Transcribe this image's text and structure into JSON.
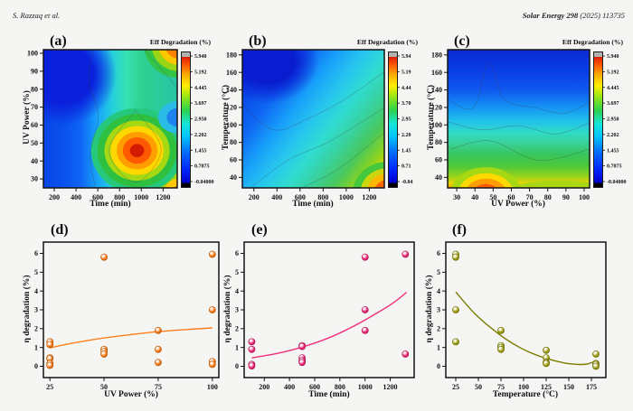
{
  "header": {
    "author": "S. Razzaq et al.",
    "journal_bold": "Solar Energy 298",
    "journal_rest": " (2025) 113735"
  },
  "colorbar_title": "Eff Degradation (%)",
  "chart_data": [
    {
      "id": "a",
      "label": "(a)",
      "type": "heatmap",
      "xlabel": "Time (min)",
      "ylabel": "UV Power (%)",
      "xlim": [
        100,
        1330
      ],
      "ylim": [
        25,
        102
      ],
      "xticks": [
        200,
        400,
        600,
        800,
        1000,
        1200
      ],
      "yticks": [
        30,
        40,
        50,
        60,
        70,
        80,
        90,
        100
      ],
      "colorbar": {
        "title": "Eff Degradation (%)",
        "ticks": [
          "5.940",
          "5.192",
          "4.445",
          "3.697",
          "2.950",
          "2.202",
          "1.455",
          "0.7075",
          "-0.04000"
        ]
      },
      "approx_field": {
        "approx": true,
        "x": [
          100,
          500,
          800,
          1100,
          1330
        ],
        "y_rows_top_to_bottom": [
          100,
          70,
          50,
          30
        ],
        "values": [
          [
            0.4,
            0.1,
            1.5,
            4.0,
            5.5
          ],
          [
            0.8,
            0.5,
            1.8,
            2.5,
            2.0
          ],
          [
            1.0,
            0.9,
            3.0,
            5.8,
            1.5
          ],
          [
            0.8,
            1.2,
            2.5,
            4.0,
            5.9
          ]
        ]
      }
    },
    {
      "id": "b",
      "label": "(b)",
      "type": "heatmap",
      "xlabel": "Time (min)",
      "ylabel": "Temperature (°C)",
      "xlim": [
        100,
        1330
      ],
      "ylim": [
        28,
        186
      ],
      "xticks": [
        200,
        400,
        600,
        800,
        1000,
        1200
      ],
      "yticks": [
        40,
        60,
        80,
        100,
        120,
        140,
        160,
        180
      ],
      "colorbar": {
        "title": "Eff Degradation (%)",
        "ticks": [
          "5.94",
          "5.19",
          "4.44",
          "3.70",
          "2.95",
          "2.20",
          "1.45",
          "0.71",
          "-0.04"
        ]
      },
      "approx_field": {
        "approx": true,
        "x": [
          100,
          500,
          800,
          1100,
          1330
        ],
        "y_rows_top_to_bottom": [
          180,
          130,
          80,
          30
        ],
        "values": [
          [
            0.0,
            0.1,
            0.3,
            0.8,
            1.2
          ],
          [
            0.3,
            0.2,
            0.8,
            1.3,
            1.8
          ],
          [
            0.8,
            1.0,
            1.5,
            2.2,
            3.0
          ],
          [
            1.3,
            1.8,
            2.5,
            4.0,
            5.9
          ]
        ]
      }
    },
    {
      "id": "c",
      "label": "(c)",
      "type": "heatmap",
      "xlabel": "UV Power (%)",
      "ylabel": "Temperature (°C)",
      "xlim": [
        25,
        103
      ],
      "ylim": [
        28,
        186
      ],
      "xticks": [
        30,
        40,
        50,
        60,
        70,
        80,
        90,
        100
      ],
      "yticks": [
        40,
        60,
        80,
        100,
        120,
        140,
        160,
        180
      ],
      "colorbar": {
        "title": "Eff Degradation (%)",
        "ticks": [
          "5.940",
          "5.192",
          "4.445",
          "3.697",
          "2.950",
          "2.202",
          "1.455",
          "0.7075",
          "-0.04000"
        ]
      },
      "approx_field": {
        "approx": true,
        "x": [
          30,
          50,
          75,
          100
        ],
        "y_rows_top_to_bottom": [
          180,
          120,
          80,
          30
        ],
        "values": [
          [
            0.3,
            0.5,
            0.2,
            0.1
          ],
          [
            1.3,
            1.0,
            0.8,
            1.0
          ],
          [
            2.2,
            1.8,
            1.5,
            1.8
          ],
          [
            5.9,
            5.5,
            4.0,
            3.0
          ]
        ]
      }
    },
    {
      "id": "d",
      "label": "(d)",
      "type": "scatter",
      "xlabel": "UV Power (%)",
      "ylabel": "η degradation (%)",
      "xlim": [
        22,
        103
      ],
      "ylim": [
        -0.6,
        6.6
      ],
      "xticks": [
        25,
        50,
        75,
        100
      ],
      "yticks": [
        0,
        1,
        2,
        3,
        4,
        5,
        6
      ],
      "marker": {
        "main": "#ff7f1e",
        "dark": "#b35300",
        "light": "#ffd9ad"
      },
      "line_color": "#ff7f1e",
      "points": [
        [
          25,
          1.3
        ],
        [
          25,
          1.15
        ],
        [
          25,
          0.45
        ],
        [
          25,
          0.4
        ],
        [
          25,
          0.15
        ],
        [
          25,
          0.05
        ],
        [
          50,
          5.8
        ],
        [
          50,
          0.9
        ],
        [
          50,
          0.78
        ],
        [
          50,
          0.65
        ],
        [
          75,
          1.9
        ],
        [
          75,
          0.9
        ],
        [
          75,
          0.2
        ],
        [
          100,
          5.95
        ],
        [
          100,
          3.0
        ],
        [
          100,
          0.25
        ],
        [
          100,
          0.1
        ]
      ],
      "trend": [
        [
          25,
          0.98
        ],
        [
          35,
          1.22
        ],
        [
          45,
          1.42
        ],
        [
          55,
          1.58
        ],
        [
          65,
          1.72
        ],
        [
          75,
          1.84
        ],
        [
          85,
          1.93
        ],
        [
          100,
          2.04
        ]
      ]
    },
    {
      "id": "e",
      "label": "(e)",
      "type": "scatter",
      "xlabel": "Time (min)",
      "ylabel": "η degradation (%)",
      "xlim": [
        40,
        1390
      ],
      "ylim": [
        -0.6,
        6.6
      ],
      "xticks": [
        200,
        400,
        600,
        800,
        1000,
        1200
      ],
      "yticks": [
        0,
        1,
        2,
        3,
        4,
        5,
        6
      ],
      "marker": {
        "main": "#f0307d",
        "dark": "#a8114e",
        "light": "#ffc3dc"
      },
      "line_color": "#f0307d",
      "points": [
        [
          100,
          1.3
        ],
        [
          100,
          0.9
        ],
        [
          100,
          0.1
        ],
        [
          100,
          0.02
        ],
        [
          500,
          1.1
        ],
        [
          500,
          1.05
        ],
        [
          500,
          0.45
        ],
        [
          500,
          0.3
        ],
        [
          500,
          0.2
        ],
        [
          1000,
          5.8
        ],
        [
          1000,
          3.0
        ],
        [
          1000,
          1.9
        ],
        [
          1320,
          5.95
        ],
        [
          1320,
          0.65
        ]
      ],
      "trend": [
        [
          100,
          0.45
        ],
        [
          300,
          0.68
        ],
        [
          500,
          1.02
        ],
        [
          700,
          1.48
        ],
        [
          900,
          2.1
        ],
        [
          1100,
          2.85
        ],
        [
          1230,
          3.4
        ],
        [
          1330,
          3.93
        ]
      ]
    },
    {
      "id": "f",
      "label": "(f)",
      "type": "scatter",
      "xlabel": "Temperature (°C)",
      "ylabel": "η degradation (%)",
      "xlim": [
        14,
        191
      ],
      "ylim": [
        -0.6,
        6.6
      ],
      "xticks": [
        25,
        50,
        75,
        100,
        125,
        150,
        175
      ],
      "yticks": [
        0,
        1,
        2,
        3,
        4,
        5,
        6
      ],
      "marker": {
        "main": "#a3a31c",
        "dark": "#6b6b00",
        "light": "#e6e68c"
      },
      "line_color": "#7c7c00",
      "points": [
        [
          25,
          5.95
        ],
        [
          25,
          5.8
        ],
        [
          25,
          3.0
        ],
        [
          25,
          1.3
        ],
        [
          75,
          1.9
        ],
        [
          75,
          1.1
        ],
        [
          75,
          1.0
        ],
        [
          75,
          0.9
        ],
        [
          125,
          0.85
        ],
        [
          125,
          0.45
        ],
        [
          125,
          0.2
        ],
        [
          125,
          0.15
        ],
        [
          180,
          0.65
        ],
        [
          180,
          0.15
        ],
        [
          180,
          0.1
        ],
        [
          180,
          0.0
        ]
      ],
      "trend": [
        [
          25,
          3.95
        ],
        [
          45,
          2.85
        ],
        [
          65,
          2.0
        ],
        [
          85,
          1.3
        ],
        [
          105,
          0.78
        ],
        [
          125,
          0.42
        ],
        [
          145,
          0.18
        ],
        [
          160,
          0.1
        ],
        [
          170,
          0.12
        ],
        [
          180,
          0.28
        ]
      ]
    }
  ]
}
